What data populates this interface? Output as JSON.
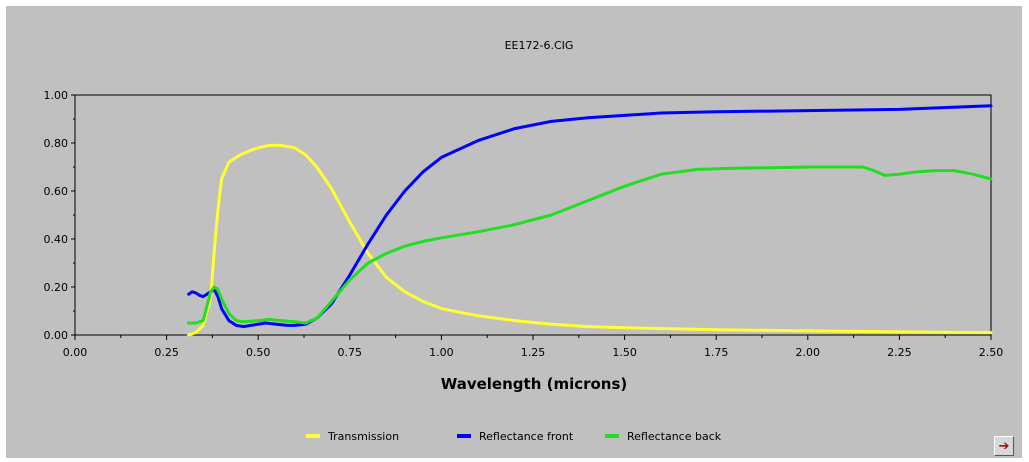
{
  "chart_data": {
    "type": "line",
    "title": "EE172-6.CIG",
    "xlabel": "Wavelength (microns)",
    "ylabel": "",
    "xlim": [
      0.0,
      2.5
    ],
    "ylim": [
      0.0,
      1.0
    ],
    "xticks": [
      "0.00",
      "0.25",
      "0.50",
      "0.75",
      "1.00",
      "1.25",
      "1.50",
      "1.75",
      "2.00",
      "2.25",
      "2.50"
    ],
    "yticks": [
      "0.00",
      "0.20",
      "0.40",
      "0.60",
      "0.80",
      "1.00"
    ],
    "grid": false,
    "legend_position": "bottom",
    "series": [
      {
        "name": "Transmission",
        "color": "#ffff33",
        "points": [
          [
            0.31,
            0.0
          ],
          [
            0.33,
            0.01
          ],
          [
            0.35,
            0.04
          ],
          [
            0.37,
            0.15
          ],
          [
            0.38,
            0.35
          ],
          [
            0.39,
            0.52
          ],
          [
            0.4,
            0.65
          ],
          [
            0.42,
            0.72
          ],
          [
            0.45,
            0.75
          ],
          [
            0.48,
            0.77
          ],
          [
            0.5,
            0.78
          ],
          [
            0.53,
            0.79
          ],
          [
            0.56,
            0.79
          ],
          [
            0.6,
            0.78
          ],
          [
            0.63,
            0.75
          ],
          [
            0.66,
            0.7
          ],
          [
            0.7,
            0.61
          ],
          [
            0.75,
            0.47
          ],
          [
            0.8,
            0.34
          ],
          [
            0.85,
            0.24
          ],
          [
            0.9,
            0.18
          ],
          [
            0.95,
            0.14
          ],
          [
            1.0,
            0.11
          ],
          [
            1.1,
            0.08
          ],
          [
            1.2,
            0.06
          ],
          [
            1.3,
            0.045
          ],
          [
            1.4,
            0.035
          ],
          [
            1.5,
            0.03
          ],
          [
            1.6,
            0.027
          ],
          [
            1.75,
            0.022
          ],
          [
            2.0,
            0.017
          ],
          [
            2.25,
            0.013
          ],
          [
            2.5,
            0.01
          ]
        ]
      },
      {
        "name": "Reflectance front",
        "color": "#0000ff",
        "points": [
          [
            0.31,
            0.17
          ],
          [
            0.32,
            0.18
          ],
          [
            0.33,
            0.175
          ],
          [
            0.34,
            0.165
          ],
          [
            0.35,
            0.16
          ],
          [
            0.36,
            0.17
          ],
          [
            0.37,
            0.18
          ],
          [
            0.38,
            0.19
          ],
          [
            0.39,
            0.16
          ],
          [
            0.4,
            0.11
          ],
          [
            0.42,
            0.06
          ],
          [
            0.44,
            0.04
          ],
          [
            0.46,
            0.035
          ],
          [
            0.48,
            0.04
          ],
          [
            0.5,
            0.045
          ],
          [
            0.52,
            0.05
          ],
          [
            0.55,
            0.045
          ],
          [
            0.58,
            0.04
          ],
          [
            0.6,
            0.04
          ],
          [
            0.63,
            0.045
          ],
          [
            0.66,
            0.07
          ],
          [
            0.7,
            0.13
          ],
          [
            0.75,
            0.25
          ],
          [
            0.8,
            0.38
          ],
          [
            0.85,
            0.5
          ],
          [
            0.9,
            0.6
          ],
          [
            0.95,
            0.68
          ],
          [
            1.0,
            0.74
          ],
          [
            1.1,
            0.81
          ],
          [
            1.2,
            0.86
          ],
          [
            1.3,
            0.89
          ],
          [
            1.4,
            0.905
          ],
          [
            1.5,
            0.915
          ],
          [
            1.6,
            0.925
          ],
          [
            1.75,
            0.93
          ],
          [
            2.0,
            0.935
          ],
          [
            2.25,
            0.94
          ],
          [
            2.5,
            0.955
          ]
        ]
      },
      {
        "name": "Reflectance back",
        "color": "#22dd22",
        "points": [
          [
            0.31,
            0.05
          ],
          [
            0.33,
            0.05
          ],
          [
            0.35,
            0.06
          ],
          [
            0.37,
            0.18
          ],
          [
            0.38,
            0.2
          ],
          [
            0.39,
            0.19
          ],
          [
            0.4,
            0.15
          ],
          [
            0.42,
            0.09
          ],
          [
            0.44,
            0.06
          ],
          [
            0.46,
            0.055
          ],
          [
            0.5,
            0.06
          ],
          [
            0.53,
            0.065
          ],
          [
            0.56,
            0.06
          ],
          [
            0.6,
            0.055
          ],
          [
            0.63,
            0.05
          ],
          [
            0.66,
            0.07
          ],
          [
            0.7,
            0.14
          ],
          [
            0.75,
            0.23
          ],
          [
            0.8,
            0.3
          ],
          [
            0.85,
            0.34
          ],
          [
            0.9,
            0.37
          ],
          [
            0.95,
            0.39
          ],
          [
            1.0,
            0.405
          ],
          [
            1.1,
            0.43
          ],
          [
            1.2,
            0.46
          ],
          [
            1.3,
            0.5
          ],
          [
            1.4,
            0.56
          ],
          [
            1.5,
            0.62
          ],
          [
            1.6,
            0.67
          ],
          [
            1.7,
            0.69
          ],
          [
            1.8,
            0.695
          ],
          [
            1.9,
            0.697
          ],
          [
            2.0,
            0.7
          ],
          [
            2.1,
            0.7
          ],
          [
            2.15,
            0.7
          ],
          [
            2.18,
            0.685
          ],
          [
            2.21,
            0.665
          ],
          [
            2.25,
            0.67
          ],
          [
            2.3,
            0.68
          ],
          [
            2.35,
            0.685
          ],
          [
            2.4,
            0.685
          ],
          [
            2.45,
            0.67
          ],
          [
            2.5,
            0.65
          ]
        ]
      }
    ]
  },
  "nav_button": {
    "icon": "arrow-right-icon",
    "glyph": "➔"
  }
}
